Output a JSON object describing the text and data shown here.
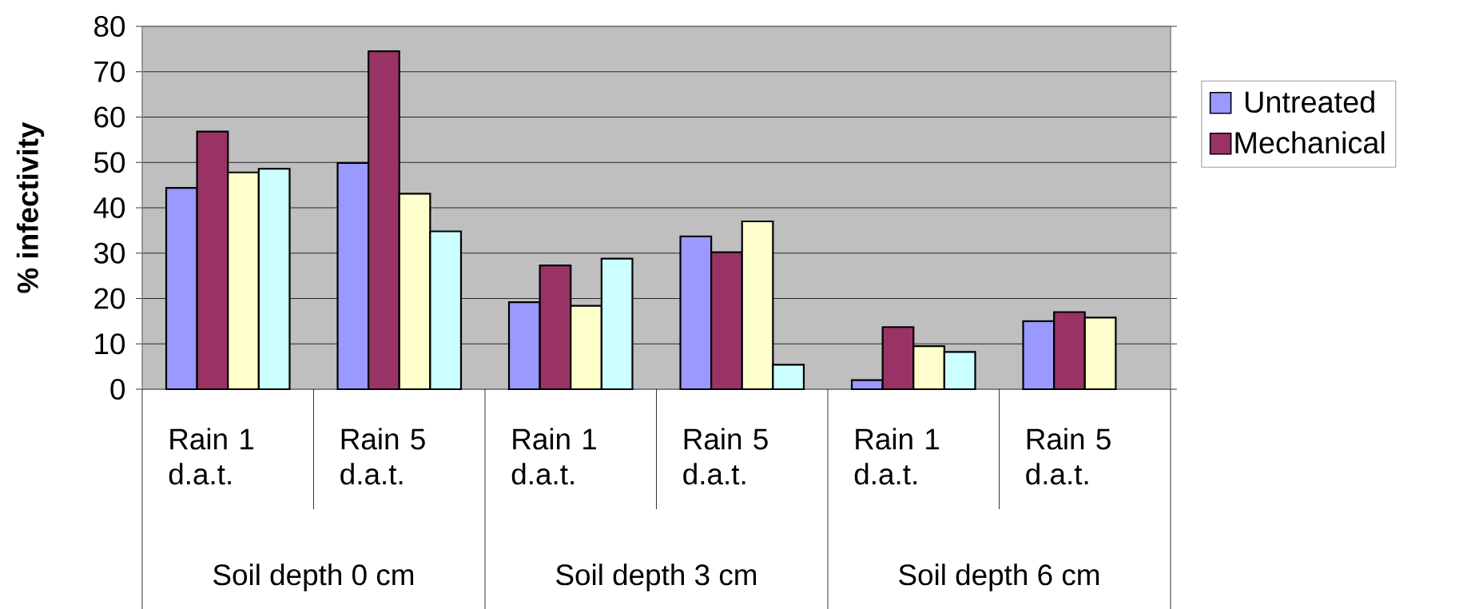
{
  "chart_data": {
    "type": "bar",
    "ylabel": "% infectivity",
    "categories": [
      "Rain 1 d.a.t.",
      "Rain 5 d.a.t.",
      "Rain 1 d.a.t.",
      "Rain 5 d.a.t.",
      "Rain 1 d.a.t.",
      "Rain 5 d.a.t."
    ],
    "series": [
      {
        "name": "Untreated",
        "color": "#9999ff",
        "values": [
          44.4,
          49.9,
          19.2,
          33.7,
          2.0,
          15.0
        ]
      },
      {
        "name": "Mechanical",
        "color": "#993366",
        "values": [
          56.8,
          74.5,
          27.3,
          30.2,
          13.7,
          17.0
        ]
      },
      {
        "color": "#ffffcc",
        "values": [
          47.8,
          43.1,
          18.4,
          37.0,
          9.5,
          15.8
        ]
      },
      {
        "color": "#ccffff",
        "values": [
          48.6,
          34.8,
          28.8,
          5.4,
          8.2,
          null
        ]
      }
    ],
    "ylim": [
      0,
      80
    ],
    "yticks": [
      0,
      10,
      20,
      30,
      40,
      50,
      60,
      70,
      80
    ],
    "grid": "y",
    "legend": "right",
    "annotations": [
      "Soil depth 0 cm",
      "Soil depth 3 cm",
      "Soil depth 6 cm"
    ]
  }
}
